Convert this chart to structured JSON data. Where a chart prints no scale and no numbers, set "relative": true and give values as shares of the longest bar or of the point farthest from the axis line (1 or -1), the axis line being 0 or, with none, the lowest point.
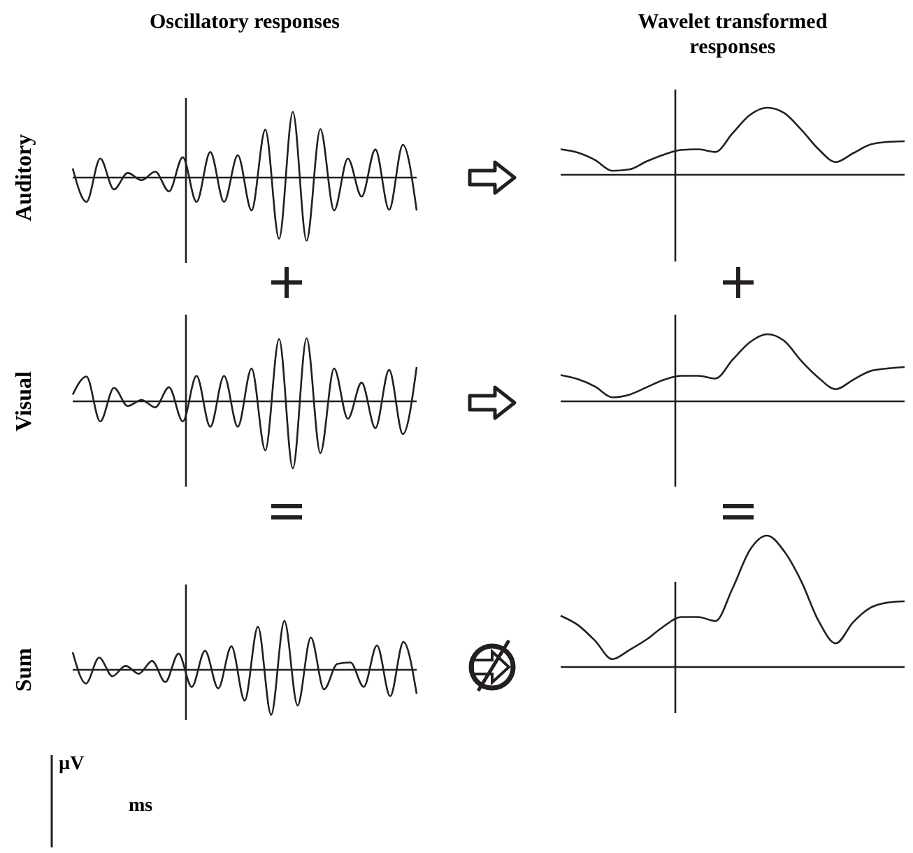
{
  "chart_data": [
    {
      "type": "line",
      "relative": true,
      "title": "Oscillatory responses",
      "ylabel": "Auditory",
      "categories": [
        null,
        null,
        null,
        null,
        null,
        null,
        null,
        null,
        null,
        null,
        null,
        null,
        null,
        null,
        null,
        null,
        null,
        null,
        null,
        null,
        null,
        null,
        null,
        null,
        null,
        null
      ],
      "series": [
        {
          "color": "#231f20",
          "values": [
            0.14,
            -0.37,
            0.29,
            -0.18,
            0.07,
            -0.04,
            0.09,
            -0.21,
            0.31,
            -0.37,
            0.39,
            -0.37,
            0.34,
            -0.5,
            0.73,
            -0.93,
            1,
            -0.96,
            0.74,
            -0.5,
            0.29,
            -0.29,
            0.43,
            -0.49,
            0.5,
            -0.5
          ]
        }
      ]
    },
    {
      "type": "line",
      "relative": true,
      "title": "Wavelet transformed responses",
      "categories": [
        null,
        null,
        null,
        null,
        null,
        null,
        null,
        null,
        null,
        null,
        null,
        null,
        null,
        null,
        null,
        null,
        null,
        null,
        null,
        null,
        null
      ],
      "series": [
        {
          "color": "#231f20",
          "values": [
            0.38,
            0.33,
            0.22,
            0.06,
            0.08,
            0.2,
            0.3,
            0.37,
            0.38,
            0.34,
            0.62,
            0.89,
            1,
            0.92,
            0.67,
            0.38,
            0.19,
            0.32,
            0.45,
            0.49,
            0.5
          ]
        }
      ]
    },
    {
      "type": "line",
      "relative": true,
      "ylabel": "Visual",
      "categories": [
        null,
        null,
        null,
        null,
        null,
        null,
        null,
        null,
        null,
        null,
        null,
        null,
        null,
        null,
        null,
        null,
        null,
        null,
        null,
        null,
        null,
        null,
        null,
        null,
        null,
        null
      ],
      "series": [
        {
          "color": "#231f20",
          "values": [
            0.1,
            0.37,
            -0.3,
            0.2,
            -0.07,
            0.02,
            -0.09,
            0.21,
            -0.3,
            0.38,
            -0.38,
            0.38,
            -0.38,
            0.49,
            -0.73,
            0.93,
            -1,
            0.94,
            -0.77,
            0.49,
            -0.26,
            0.28,
            -0.4,
            0.47,
            -0.49,
            0.51
          ]
        }
      ]
    },
    {
      "type": "line",
      "relative": true,
      "categories": [
        null,
        null,
        null,
        null,
        null,
        null,
        null,
        null,
        null,
        null,
        null,
        null,
        null,
        null,
        null,
        null,
        null,
        null,
        null,
        null,
        null
      ],
      "series": [
        {
          "color": "#231f20",
          "values": [
            0.39,
            0.33,
            0.22,
            0.06,
            0.1,
            0.21,
            0.32,
            0.38,
            0.38,
            0.34,
            0.62,
            0.88,
            1,
            0.9,
            0.6,
            0.35,
            0.18,
            0.32,
            0.45,
            0.49,
            0.51
          ]
        }
      ]
    },
    {
      "type": "line",
      "relative": true,
      "ylabel": "Sum",
      "annotations": [
        "µV",
        "ms"
      ],
      "categories": [
        null,
        null,
        null,
        null,
        null,
        null,
        null,
        null,
        null,
        null,
        null,
        null,
        null,
        null,
        null,
        null,
        null,
        null,
        null,
        null,
        null,
        null,
        null,
        null,
        null,
        null,
        null
      ],
      "series": [
        {
          "color": "#231f20",
          "values": [
            0.36,
            -0.28,
            0.25,
            -0.13,
            0.08,
            -0.08,
            0.18,
            -0.25,
            0.33,
            -0.35,
            0.39,
            -0.38,
            0.48,
            -0.63,
            0.88,
            -0.92,
            1,
            -0.73,
            0.66,
            -0.4,
            0.12,
            0.15,
            -0.35,
            0.5,
            -0.54,
            0.57,
            -0.49
          ]
        }
      ]
    },
    {
      "type": "line",
      "relative": true,
      "categories": [
        null,
        null,
        null,
        null,
        null,
        null,
        null,
        null,
        null,
        null,
        null,
        null,
        null,
        null,
        null,
        null,
        null,
        null,
        null,
        null,
        null
      ],
      "series": [
        {
          "color": "#231f20",
          "values": [
            0.39,
            0.32,
            0.2,
            0.06,
            0.13,
            0.21,
            0.31,
            0.38,
            0.38,
            0.35,
            0.6,
            0.89,
            1,
            0.88,
            0.65,
            0.35,
            0.18,
            0.34,
            0.45,
            0.49,
            0.5
          ]
        }
      ]
    }
  ]
}
